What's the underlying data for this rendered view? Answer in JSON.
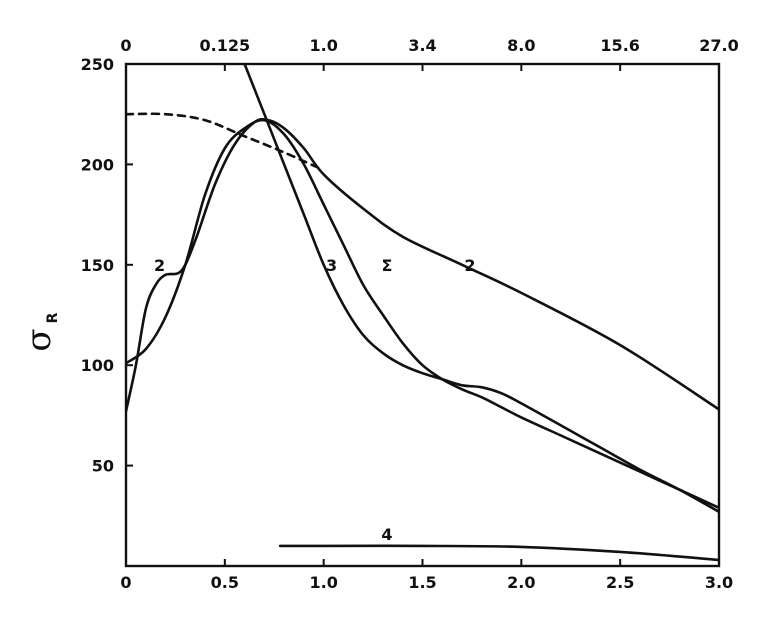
{
  "chart_data": {
    "type": "line",
    "ylabel": "σ",
    "ylabel_sub": "R",
    "xlim": [
      0,
      3.0
    ],
    "ylim": [
      0,
      250
    ],
    "x_ticks": [
      "0",
      "0.5",
      "1.0",
      "1.5",
      "2.0",
      "2.5",
      "3.0"
    ],
    "y_ticks": [
      "250",
      "200",
      "150",
      "100",
      "50"
    ],
    "top_ticks": [
      "0",
      "0.125",
      "1.0",
      "3.4",
      "8.0",
      "15.6",
      "27.0"
    ],
    "grid": false,
    "series": [
      {
        "name": "Σ",
        "style": "solid",
        "points": [
          [
            0,
            101
          ],
          [
            0.1,
            108
          ],
          [
            0.2,
            124
          ],
          [
            0.3,
            150
          ],
          [
            0.4,
            185
          ],
          [
            0.5,
            208
          ],
          [
            0.6,
            218
          ],
          [
            0.7,
            222
          ],
          [
            0.8,
            215
          ],
          [
            0.9,
            200
          ],
          [
            1.0,
            180
          ],
          [
            1.1,
            160
          ],
          [
            1.2,
            140
          ],
          [
            1.3,
            125
          ],
          [
            1.4,
            111
          ],
          [
            1.5,
            100
          ],
          [
            1.6,
            93
          ],
          [
            1.7,
            88
          ],
          [
            1.8,
            84
          ],
          [
            1.9,
            79
          ],
          [
            2.0,
            74
          ],
          [
            2.2,
            65
          ],
          [
            2.4,
            56
          ],
          [
            2.6,
            47
          ],
          [
            2.8,
            38
          ],
          [
            3.0,
            29
          ]
        ]
      },
      {
        "name": "2",
        "style": "solid",
        "points": [
          [
            0,
            77
          ],
          [
            0.05,
            100
          ],
          [
            0.1,
            128
          ],
          [
            0.15,
            140
          ],
          [
            0.2,
            145
          ],
          [
            0.28,
            147
          ],
          [
            0.35,
            162
          ],
          [
            0.45,
            190
          ],
          [
            0.55,
            210
          ],
          [
            0.65,
            221
          ],
          [
            0.72,
            222
          ],
          [
            0.8,
            218
          ],
          [
            0.9,
            208
          ],
          [
            1.0,
            195
          ],
          [
            1.2,
            178
          ],
          [
            1.4,
            164
          ],
          [
            1.7,
            150
          ],
          [
            2.0,
            136
          ],
          [
            2.5,
            110
          ],
          [
            3.0,
            78
          ]
        ]
      },
      {
        "name": "3",
        "style": "solid",
        "points": [
          [
            0.6,
            250
          ],
          [
            0.7,
            225
          ],
          [
            0.8,
            200
          ],
          [
            0.9,
            175
          ],
          [
            1.0,
            150
          ],
          [
            1.1,
            130
          ],
          [
            1.2,
            115
          ],
          [
            1.3,
            106
          ],
          [
            1.4,
            100
          ],
          [
            1.5,
            96
          ],
          [
            1.6,
            93
          ],
          [
            1.7,
            90
          ],
          [
            1.8,
            89
          ],
          [
            1.9,
            86
          ],
          [
            2.0,
            81
          ],
          [
            2.2,
            70
          ],
          [
            2.4,
            59
          ],
          [
            2.6,
            48
          ],
          [
            2.8,
            38
          ],
          [
            3.0,
            27
          ]
        ]
      },
      {
        "name": "4",
        "style": "solid",
        "points": [
          [
            0.78,
            10
          ],
          [
            1.0,
            10
          ],
          [
            1.5,
            10
          ],
          [
            2.0,
            9.5
          ],
          [
            2.5,
            7
          ],
          [
            3.0,
            3
          ]
        ]
      },
      {
        "name": "dashed",
        "style": "dashed",
        "points": [
          [
            0,
            225
          ],
          [
            0.2,
            225
          ],
          [
            0.4,
            222
          ],
          [
            0.6,
            214
          ],
          [
            0.8,
            206
          ],
          [
            0.98,
            198
          ]
        ]
      }
    ],
    "curve_labels": [
      {
        "text": "2",
        "x": 0.17,
        "y": 150
      },
      {
        "text": "3",
        "x": 1.04,
        "y": 150
      },
      {
        "text": "Σ",
        "x": 1.32,
        "y": 150
      },
      {
        "text": "2",
        "x": 1.74,
        "y": 150
      },
      {
        "text": "4",
        "x": 1.32,
        "y": 16
      }
    ]
  }
}
